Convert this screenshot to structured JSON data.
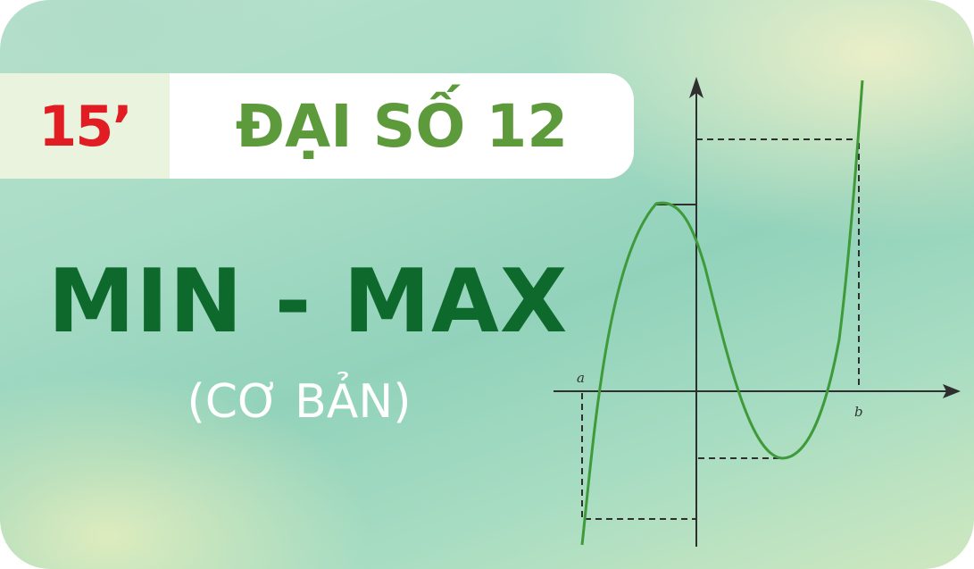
{
  "badge": {
    "label": "15’"
  },
  "subject": {
    "label": "ĐẠI SỐ 12"
  },
  "title": {
    "label": "MIN - MAX"
  },
  "subtitle": {
    "label": "(CƠ BẢN)"
  },
  "graph": {
    "label_a": "a",
    "label_b": "b",
    "curve_color": "#3f9a3a",
    "axis_color": "#2f2f2f"
  },
  "colors": {
    "badge": "#e11c23",
    "subject": "#5c9a3b",
    "title": "#0e6a2c",
    "subtitle": "#ffffff"
  }
}
